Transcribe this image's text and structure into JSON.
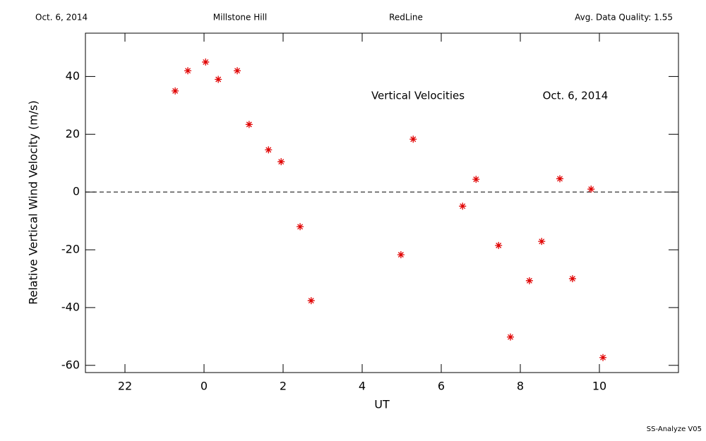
{
  "header": {
    "date": "Oct. 6, 2014",
    "site": "Millstone Hill",
    "line": "RedLine",
    "quality": "Avg. Data Quality: 1.55"
  },
  "footer": "SS-Analyze V05",
  "chart_data": {
    "type": "scatter",
    "xlabel": "UT",
    "ylabel": "Relative Vertical Wind Velocity (m/s)",
    "annotations": [
      "Vertical Velocities",
      "Oct. 6, 2014"
    ],
    "color": "#e00000",
    "reference_line": 0,
    "xlim": [
      -3,
      12
    ],
    "xticks": [
      {
        "value": -2,
        "label": "22"
      },
      0,
      2,
      4,
      6,
      8,
      10
    ],
    "ylim": [
      -62.5,
      55
    ],
    "yticks": [
      -60,
      -40,
      -20,
      0,
      20,
      40
    ],
    "x": [
      -0.73,
      -0.41,
      0.04,
      0.36,
      0.84,
      1.14,
      1.63,
      1.95,
      2.43,
      2.71,
      4.98,
      5.29,
      6.54,
      6.88,
      7.45,
      7.75,
      8.23,
      8.54,
      9.0,
      9.32,
      9.79,
      10.09
    ],
    "values": [
      35,
      42,
      45,
      39,
      42,
      23.4,
      14.6,
      10.5,
      -12,
      -37.6,
      -21.7,
      18.3,
      -4.9,
      4.4,
      -18.5,
      -50.2,
      -30.7,
      -17.1,
      4.6,
      -30,
      1,
      -57.3
    ]
  }
}
